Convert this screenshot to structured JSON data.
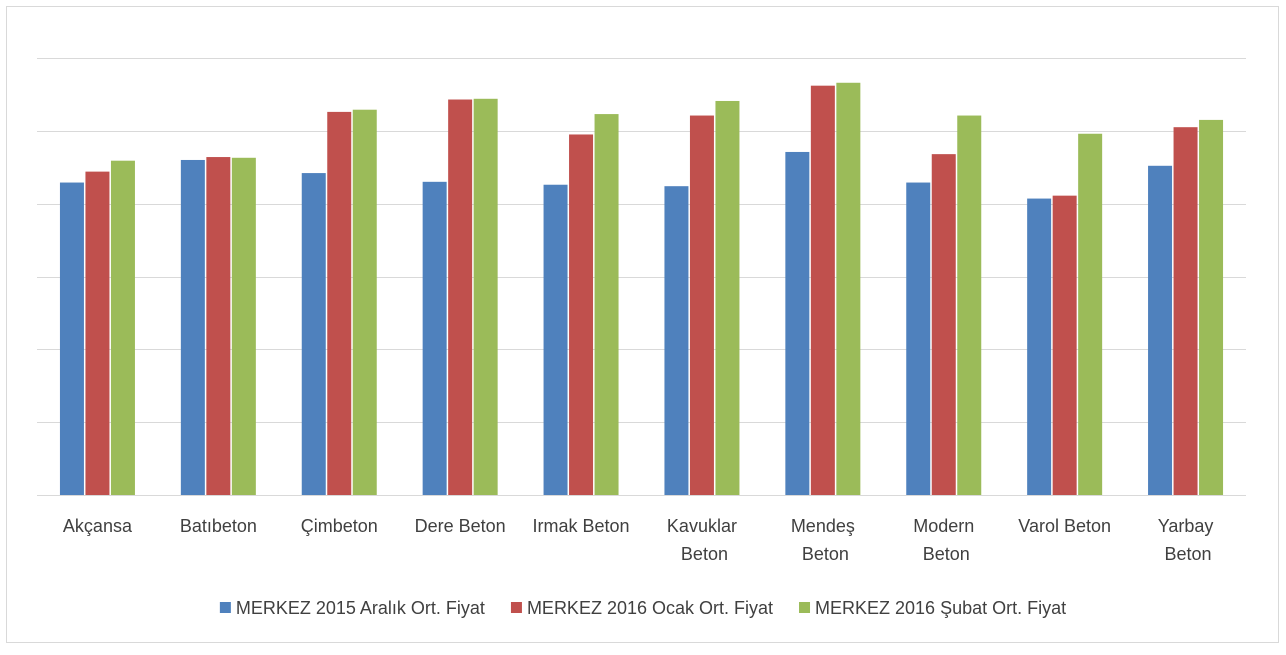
{
  "chart_data": {
    "type": "bar",
    "categories": [
      "Akçansa",
      "Batıbeton",
      "Çimbeton",
      "Dere Beton",
      "Irmak Beton",
      "Kavuklar Beton",
      "Mendeş Beton",
      "Modern Beton",
      "Varol Beton",
      "Yarbay Beton"
    ],
    "series": [
      {
        "name": "MERKEZ 2015 Aralık Ort. Fiyat",
        "color": "#4f81bd",
        "values": [
          4.29,
          4.6,
          4.42,
          4.3,
          4.26,
          4.24,
          4.71,
          4.29,
          4.07,
          4.52
        ]
      },
      {
        "name": "MERKEZ 2016 Ocak Ort. Fiyat",
        "color": "#c0504d",
        "values": [
          4.44,
          4.64,
          5.26,
          5.43,
          4.95,
          5.21,
          5.62,
          4.68,
          4.11,
          5.05
        ]
      },
      {
        "name": "MERKEZ 2016 Şubat Ort. Fiyat",
        "color": "#9bbb59",
        "values": [
          4.59,
          4.63,
          5.29,
          5.44,
          5.23,
          5.41,
          5.66,
          5.21,
          4.96,
          5.15
        ]
      }
    ],
    "ylim": [
      0,
      6
    ],
    "yticks": [
      0,
      1,
      2,
      3,
      4,
      5,
      6
    ],
    "grid": true,
    "legend": "bottom"
  }
}
